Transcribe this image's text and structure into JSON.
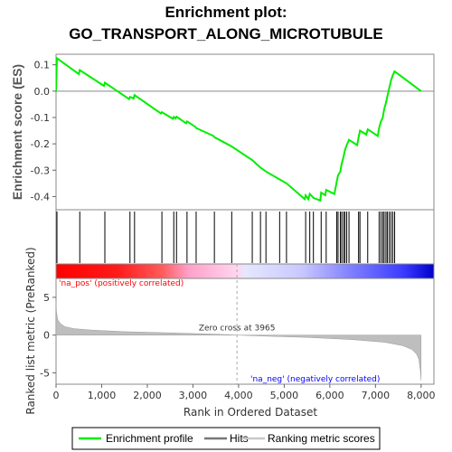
{
  "title_line1": "Enrichment plot:",
  "title_line2": "GO_TRANSPORT_ALONG_MICROTUBULE",
  "colors": {
    "profile": "#00ee00",
    "hits": "#000000",
    "metric_fill": "#bebebe",
    "pos_label": "#ff0000",
    "neg_label": "#0000ff"
  },
  "chart_data": [
    {
      "type": "line",
      "panel": "enrichment",
      "ylabel": "Enrichment score (ES)",
      "xlim": [
        0,
        8281
      ],
      "ylim": [
        -0.45,
        0.14
      ],
      "y_ticks": [
        0.1,
        0.0,
        -0.1,
        -0.2,
        -0.3,
        -0.4
      ],
      "y_tick_labels": [
        "0.1",
        "0.0",
        "-0.1",
        "-0.2",
        "-0.3",
        "-0.4"
      ],
      "grid": false,
      "series": [
        {
          "name": "Enrichment profile",
          "x": [
            0,
            20,
            500,
            520,
            1050,
            1070,
            1600,
            1620,
            1700,
            1720,
            2300,
            2320,
            2560,
            2580,
            2620,
            2640,
            2850,
            2870,
            3050,
            3070,
            3450,
            3470,
            3850,
            4300,
            4480,
            4600,
            4900,
            5050,
            5450,
            5470,
            5530,
            5560,
            5640,
            5790,
            5810,
            5900,
            5920,
            6100,
            6150,
            6180,
            6230,
            6260,
            6300,
            6330,
            6370,
            6420,
            6600,
            6630,
            6660,
            6800,
            6830,
            7050,
            7080,
            7120,
            7160,
            7190,
            7230,
            7260,
            7300,
            7340,
            7380,
            7420,
            8000
          ],
          "y": [
            0.0,
            0.125,
            0.065,
            0.08,
            0.02,
            0.032,
            -0.03,
            -0.022,
            -0.028,
            -0.015,
            -0.085,
            -0.08,
            -0.105,
            -0.098,
            -0.104,
            -0.097,
            -0.122,
            -0.115,
            -0.135,
            -0.14,
            -0.17,
            -0.175,
            -0.21,
            -0.262,
            -0.29,
            -0.305,
            -0.335,
            -0.35,
            -0.41,
            -0.395,
            -0.41,
            -0.39,
            -0.405,
            -0.415,
            -0.385,
            -0.395,
            -0.375,
            -0.39,
            -0.345,
            -0.32,
            -0.305,
            -0.275,
            -0.25,
            -0.225,
            -0.205,
            -0.185,
            -0.205,
            -0.175,
            -0.15,
            -0.165,
            -0.145,
            -0.17,
            -0.14,
            -0.115,
            -0.1,
            -0.07,
            -0.045,
            -0.02,
            0.01,
            0.04,
            0.06,
            0.075,
            0.0
          ]
        }
      ]
    },
    {
      "type": "scatter",
      "panel": "hits",
      "xlim": [
        0,
        8281
      ],
      "series": [
        {
          "name": "Hits",
          "x": [
            20,
            520,
            1070,
            1620,
            1720,
            2320,
            2580,
            2640,
            2870,
            3070,
            3470,
            3850,
            4300,
            4480,
            4600,
            4900,
            5050,
            5470,
            5560,
            5640,
            5810,
            5920,
            6150,
            6180,
            6230,
            6260,
            6300,
            6330,
            6370,
            6420,
            6630,
            6660,
            6830,
            7080,
            7120,
            7160,
            7190,
            7230,
            7260,
            7300,
            7340,
            7380,
            7420
          ]
        }
      ]
    },
    {
      "type": "area",
      "panel": "ranked_metric",
      "xlabel": "Rank in Ordered Dataset",
      "ylabel": "Ranked list metric (PreRanked)",
      "xlim": [
        0,
        8281
      ],
      "ylim": [
        -6.5,
        7.5
      ],
      "x_ticks": [
        0,
        1000,
        2000,
        3000,
        4000,
        5000,
        6000,
        7000,
        8000
      ],
      "x_tick_labels": [
        "0",
        "1,000",
        "2,000",
        "3,000",
        "4,000",
        "5,000",
        "6,000",
        "7,000",
        "8,000"
      ],
      "y_ticks": [
        5,
        0,
        -5
      ],
      "y_tick_labels": [
        "5",
        "0",
        "-5"
      ],
      "series": [
        {
          "name": "Ranking metric scores",
          "x": [
            0,
            10,
            40,
            100,
            200,
            400,
            800,
            1500,
            2500,
            3500,
            3965,
            4500,
            5500,
            6500,
            7200,
            7600,
            7800,
            7900,
            7950,
            7990,
            8000
          ],
          "values": [
            4.5,
            3.0,
            2.0,
            1.5,
            1.1,
            0.85,
            0.65,
            0.45,
            0.3,
            0.12,
            0.0,
            -0.12,
            -0.3,
            -0.6,
            -0.95,
            -1.4,
            -1.9,
            -2.5,
            -3.2,
            -5.0,
            -6.0
          ]
        }
      ],
      "annotations": {
        "zero_cross": "Zero cross at 3965",
        "zero_cross_rank": 3965,
        "pos_label": "'na_pos' (positively correlated)",
        "neg_label": "'na_neg' (negatively correlated)"
      }
    }
  ],
  "legend": {
    "items": [
      {
        "label": "Enrichment profile",
        "color": "#00ee00"
      },
      {
        "label": "Hits",
        "color": "#777777"
      },
      {
        "label": "Ranking metric scores",
        "color": "#c8c8c8"
      }
    ]
  }
}
